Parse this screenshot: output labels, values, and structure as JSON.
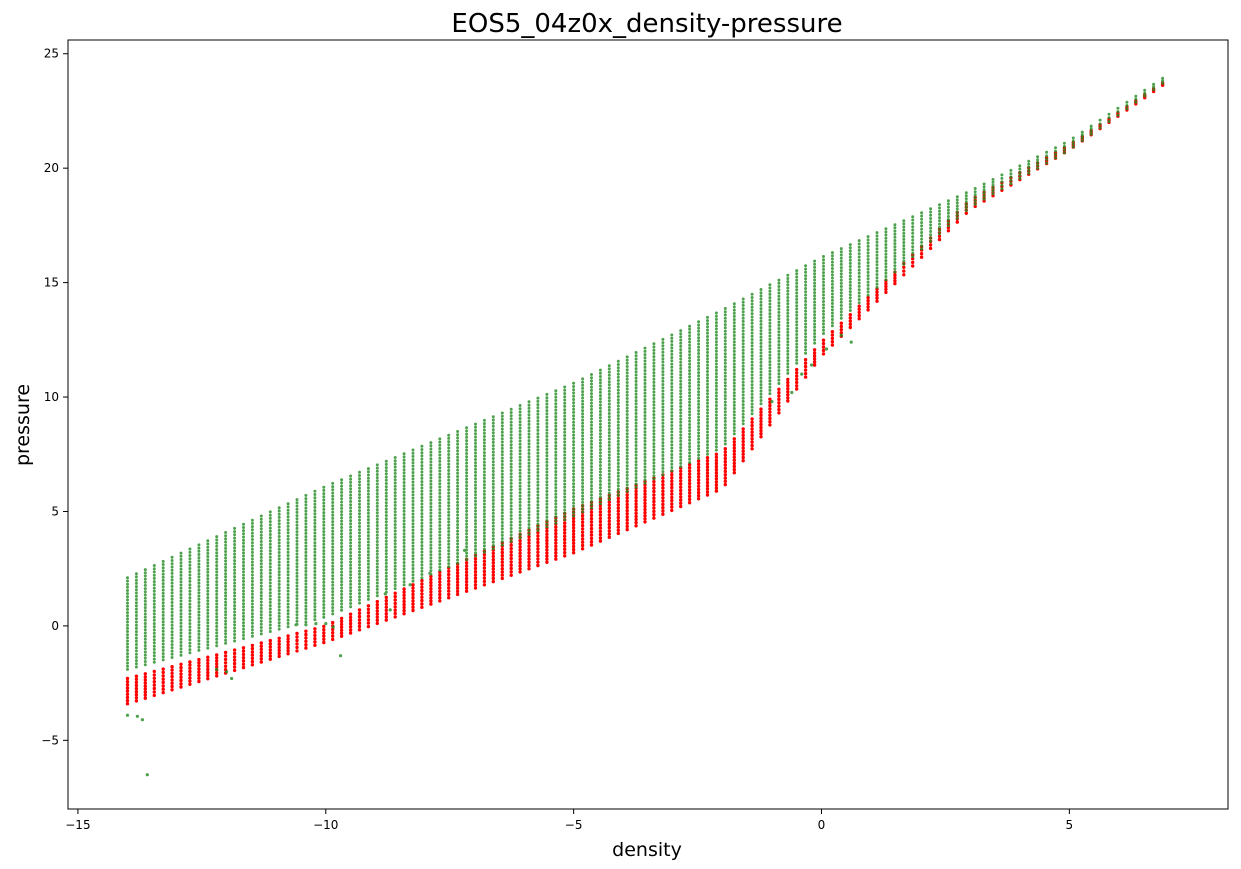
{
  "chart_data": {
    "type": "scatter",
    "title": "EOS5_04z0x_density-pressure",
    "xlabel": "density",
    "ylabel": "pressure",
    "xlim": [
      -15.2,
      8.2
    ],
    "ylim": [
      -8.0,
      25.6
    ],
    "xticks": [
      -15,
      -10,
      -5,
      0,
      5
    ],
    "xtick_labels": [
      "−15",
      "−10",
      "−5",
      "0",
      "5"
    ],
    "yticks": [
      -5,
      0,
      5,
      10,
      15,
      20,
      25
    ],
    "ytick_labels": [
      "−5",
      "0",
      "5",
      "10",
      "15",
      "20",
      "25"
    ],
    "grid": false,
    "legend": "none",
    "density_columns": {
      "start": -14.0,
      "end": 7.0,
      "step": 0.18
    },
    "series": [
      {
        "color": "#ff0000",
        "marker_size": 3,
        "band_top": [
          [
            -14.0,
            -2.3
          ],
          [
            -10.0,
            0.0
          ],
          [
            -5.0,
            5.1
          ],
          [
            -2.0,
            7.6
          ],
          [
            0.0,
            12.4
          ],
          [
            3.0,
            18.6
          ],
          [
            5.0,
            21.0
          ],
          [
            7.0,
            23.9
          ]
        ],
        "band_bottom": [
          [
            -14.0,
            -3.4
          ],
          [
            -10.0,
            -0.7
          ],
          [
            -5.0,
            3.2
          ],
          [
            -2.0,
            6.0
          ],
          [
            0.0,
            11.8
          ],
          [
            3.0,
            18.2
          ],
          [
            5.0,
            20.8
          ],
          [
            7.0,
            23.8
          ]
        ]
      },
      {
        "color": "#228b22",
        "marker_size": 2.6,
        "opacity": 0.8,
        "band_top": [
          [
            -14.0,
            2.1
          ],
          [
            -10.0,
            6.1
          ],
          [
            -5.0,
            10.6
          ],
          [
            -2.0,
            13.8
          ],
          [
            0.0,
            16.1
          ],
          [
            3.0,
            19.0
          ],
          [
            5.0,
            21.2
          ],
          [
            7.0,
            24.1
          ]
        ],
        "band_bottom": [
          [
            -14.0,
            -1.9
          ],
          [
            -10.0,
            0.4
          ],
          [
            -5.0,
            4.8
          ],
          [
            -2.0,
            7.8
          ],
          [
            0.0,
            12.7
          ],
          [
            3.0,
            18.3
          ],
          [
            5.0,
            20.8
          ],
          [
            7.0,
            23.9
          ]
        ],
        "outliers": [
          [
            -14.0,
            -3.9
          ],
          [
            -13.8,
            -3.95
          ],
          [
            -13.7,
            -4.1
          ],
          [
            -13.6,
            -6.5
          ],
          [
            -12.2,
            -1.9
          ],
          [
            -12.0,
            -2.0
          ],
          [
            -11.9,
            -2.3
          ],
          [
            -10.6,
            0.05
          ],
          [
            -10.4,
            0.05
          ],
          [
            -10.2,
            0.1
          ],
          [
            -10.0,
            0.1
          ],
          [
            -9.85,
            -0.05
          ],
          [
            -9.7,
            -1.3
          ],
          [
            -8.8,
            1.4
          ],
          [
            -8.7,
            0.7
          ],
          [
            -8.3,
            1.8
          ],
          [
            -7.9,
            2.3
          ],
          [
            -7.2,
            3.3
          ],
          [
            -1.0,
            9.8
          ],
          [
            -0.6,
            10.2
          ],
          [
            -0.4,
            11.0
          ],
          [
            -0.2,
            11.4
          ],
          [
            0.1,
            12.1
          ],
          [
            0.4,
            12.7
          ],
          [
            0.6,
            12.4
          ]
        ]
      }
    ]
  }
}
